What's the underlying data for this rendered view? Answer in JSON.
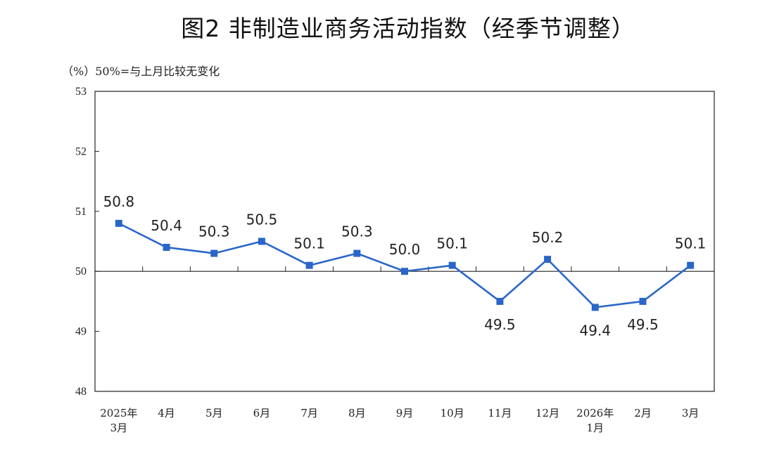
{
  "chart_data": {
    "type": "line",
    "title": "图2  非制造业商务活动指数（经季节调整）",
    "ylabel": "（%）",
    "note": "50%=与上月比较无变化",
    "ylim": [
      48,
      53
    ],
    "yticks": [
      "48",
      "49",
      "50",
      "51",
      "52",
      "53"
    ],
    "reference_line": 50,
    "categories": [
      [
        "2025年",
        "3月"
      ],
      [
        "4月"
      ],
      [
        "5月"
      ],
      [
        "6月"
      ],
      [
        "7月"
      ],
      [
        "8月"
      ],
      [
        "9月"
      ],
      [
        "10月"
      ],
      [
        "11月"
      ],
      [
        "12月"
      ],
      [
        "2026年",
        "1月"
      ],
      [
        "2月"
      ],
      [
        "3月"
      ]
    ],
    "series": [
      {
        "name": "非制造业商务活动指数",
        "color": "#2a66c8",
        "values": [
          50.8,
          50.4,
          50.3,
          50.5,
          50.1,
          50.3,
          50.0,
          50.1,
          49.5,
          50.2,
          49.4,
          49.5,
          50.1
        ],
        "labels": [
          "50.8",
          "50.4",
          "50.3",
          "50.5",
          "50.1",
          "50.3",
          "50.0",
          "50.1",
          "49.5",
          "50.2",
          "49.4",
          "49.5",
          "50.1"
        ],
        "label_positions": [
          "above",
          "above",
          "above",
          "above",
          "above",
          "above",
          "above",
          "above",
          "below",
          "above",
          "below",
          "below",
          "above"
        ]
      }
    ]
  }
}
